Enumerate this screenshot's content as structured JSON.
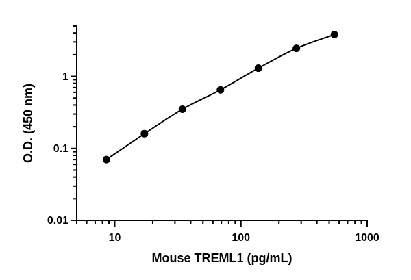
{
  "chart_data": {
    "type": "scatter",
    "xlabel": "Mouse TREML1 (pg/mL)",
    "ylabel": "O.D. (450 nm)",
    "xscale": "log",
    "yscale": "log",
    "xlim": [
      5,
      1000
    ],
    "xticks": [
      10,
      100,
      1000
    ],
    "ylim": [
      0.01,
      5
    ],
    "yticks": [
      0.01,
      0.1,
      1
    ],
    "series": [
      {
        "color": "#000000",
        "x": [
          8.6,
          17.2,
          34.4,
          68.8,
          137.5,
          275,
          550
        ],
        "values": [
          0.07,
          0.16,
          0.35,
          0.65,
          1.3,
          2.45,
          3.8
        ]
      }
    ]
  }
}
